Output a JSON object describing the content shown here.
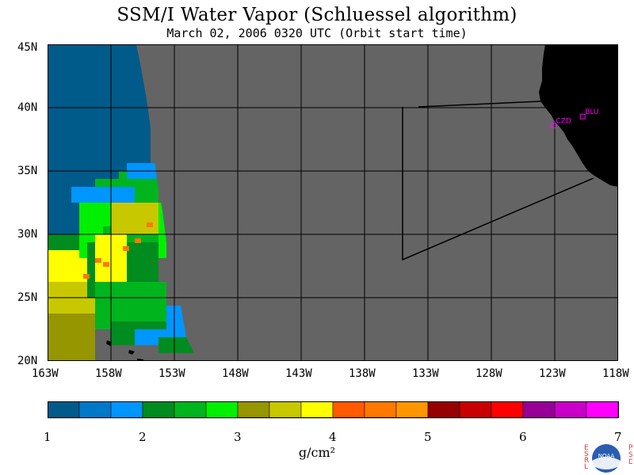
{
  "title": "SSM/I Water Vapor (Schluessel algorithm)",
  "subtitle": "March 02, 2006  0320 UTC  (Orbit start time)",
  "lat_labels": [
    "45N",
    "40N",
    "35N",
    "30N",
    "25N",
    "20N"
  ],
  "lon_labels": [
    "163W",
    "158W",
    "153W",
    "148W",
    "143W",
    "138W",
    "133W",
    "128W",
    "123W",
    "118W"
  ],
  "stations": [
    {
      "id": "CZD",
      "lon": -123.1,
      "lat": 38.6
    },
    {
      "id": "BLU",
      "lon": -120.8,
      "lat": 39.3
    }
  ],
  "colorbar": {
    "ticks": [
      "1",
      "2",
      "3",
      "4",
      "5",
      "6",
      "7"
    ],
    "units": "g/cm²",
    "colors": [
      "#005a8a",
      "#0078c8",
      "#0096ff",
      "#008c1e",
      "#00b41e",
      "#00f000",
      "#969600",
      "#c8c800",
      "#ffff00",
      "#ff5a00",
      "#ff7800",
      "#ff9600",
      "#960000",
      "#c80000",
      "#ff0000",
      "#960096",
      "#c800c8",
      "#ff00ff"
    ]
  },
  "map": {
    "lon_range": [
      -163,
      -118
    ],
    "lat_range": [
      20,
      45
    ],
    "no_data_color": "#646464",
    "land_color": "#000000"
  },
  "logo": {
    "left_text": "ESRL",
    "right_text": "PSD",
    "center_text": "NOAA"
  }
}
